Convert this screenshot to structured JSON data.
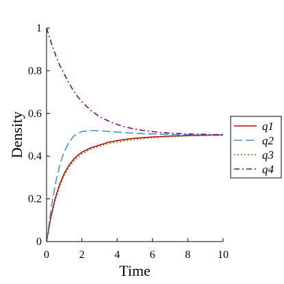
{
  "chart_data": {
    "type": "line",
    "xlabel": "Time",
    "ylabel": "Density",
    "xlim": [
      0,
      10
    ],
    "ylim": [
      0,
      1
    ],
    "x_ticks": [
      "0",
      "2",
      "4",
      "6",
      "8",
      "10"
    ],
    "y_ticks": [
      "0",
      "0.2",
      "0.4",
      "0.6",
      "0.8",
      "1"
    ],
    "grid": false,
    "legend_position": "right",
    "x": [
      0,
      0.25,
      0.5,
      0.75,
      1,
      1.25,
      1.5,
      1.75,
      2,
      2.5,
      3,
      3.5,
      4,
      4.5,
      5,
      5.5,
      6,
      6.5,
      7,
      7.5,
      8,
      8.5,
      9,
      9.5,
      10
    ],
    "series": [
      {
        "name": "q1",
        "color": "#c00000",
        "dash": "solid",
        "values": [
          0,
          0.117,
          0.204,
          0.27,
          0.318,
          0.355,
          0.382,
          0.403,
          0.418,
          0.439,
          0.452,
          0.465,
          0.473,
          0.479,
          0.484,
          0.487,
          0.49,
          0.492,
          0.494,
          0.495,
          0.496,
          0.497,
          0.498,
          0.499,
          0.499
        ]
      },
      {
        "name": "q2",
        "color": "#4a90c8",
        "dash": "long-dash",
        "values": [
          0,
          0.15,
          0.27,
          0.36,
          0.42,
          0.462,
          0.49,
          0.507,
          0.515,
          0.52,
          0.519,
          0.516,
          0.513,
          0.51,
          0.507,
          0.505,
          0.504,
          0.503,
          0.502,
          0.501,
          0.501,
          0.5,
          0.5,
          0.5,
          0.5
        ]
      },
      {
        "name": "q3",
        "color": "#5a7a1e",
        "dash": "dotted",
        "values": [
          0,
          0.11,
          0.195,
          0.26,
          0.31,
          0.345,
          0.372,
          0.393,
          0.41,
          0.432,
          0.447,
          0.458,
          0.466,
          0.473,
          0.478,
          0.483,
          0.486,
          0.489,
          0.491,
          0.493,
          0.495,
          0.496,
          0.497,
          0.498,
          0.498
        ]
      },
      {
        "name": "q4",
        "color": "#800080",
        "dash": "dash-dot",
        "values": [
          1,
          0.935,
          0.875,
          0.825,
          0.785,
          0.745,
          0.71,
          0.68,
          0.655,
          0.615,
          0.585,
          0.565,
          0.548,
          0.536,
          0.527,
          0.52,
          0.515,
          0.511,
          0.508,
          0.506,
          0.504,
          0.503,
          0.502,
          0.501,
          0.501
        ]
      }
    ]
  }
}
